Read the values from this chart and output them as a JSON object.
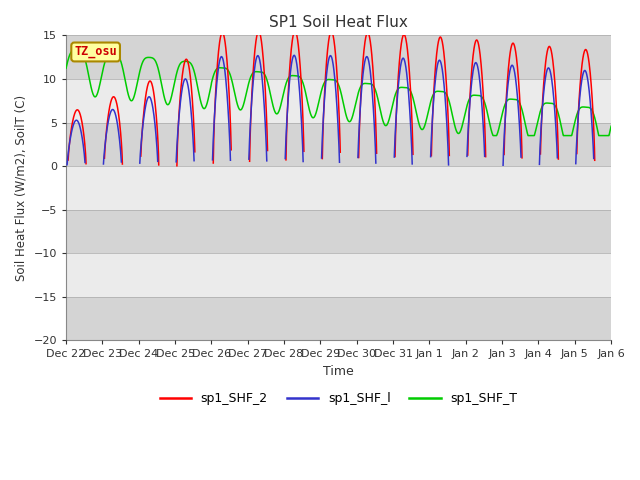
{
  "title": "SP1 Soil Heat Flux",
  "ylabel": "Soil Heat Flux (W/m2), SoilT (C)",
  "xlabel": "Time",
  "ylim": [
    -20,
    15
  ],
  "yticks": [
    -20,
    -15,
    -10,
    -5,
    0,
    5,
    10,
    15
  ],
  "xtick_labels": [
    "Dec 22",
    "Dec 23",
    "Dec 24",
    "Dec 25",
    "Dec 26",
    "Dec 27",
    "Dec 28",
    "Dec 29",
    "Dec 30",
    "Dec 31",
    "Jan 1",
    "Jan 2",
    "Jan 3",
    "Jan 4",
    "Jan 5",
    "Jan 6"
  ],
  "color_red": "#FF0000",
  "color_blue": "#3333CC",
  "color_green": "#00CC00",
  "legend_labels": [
    "sp1_SHF_2",
    "sp1_SHF_l",
    "sp1_SHF_T"
  ],
  "tz_label": "TZ_osu",
  "background_color": "#FFFFFF",
  "plot_bg_color": "#D8D8D8",
  "white_band_color": "#FFFFFF",
  "gray_band_color": "#C8C8C8",
  "num_days": 16,
  "total_days": 15
}
